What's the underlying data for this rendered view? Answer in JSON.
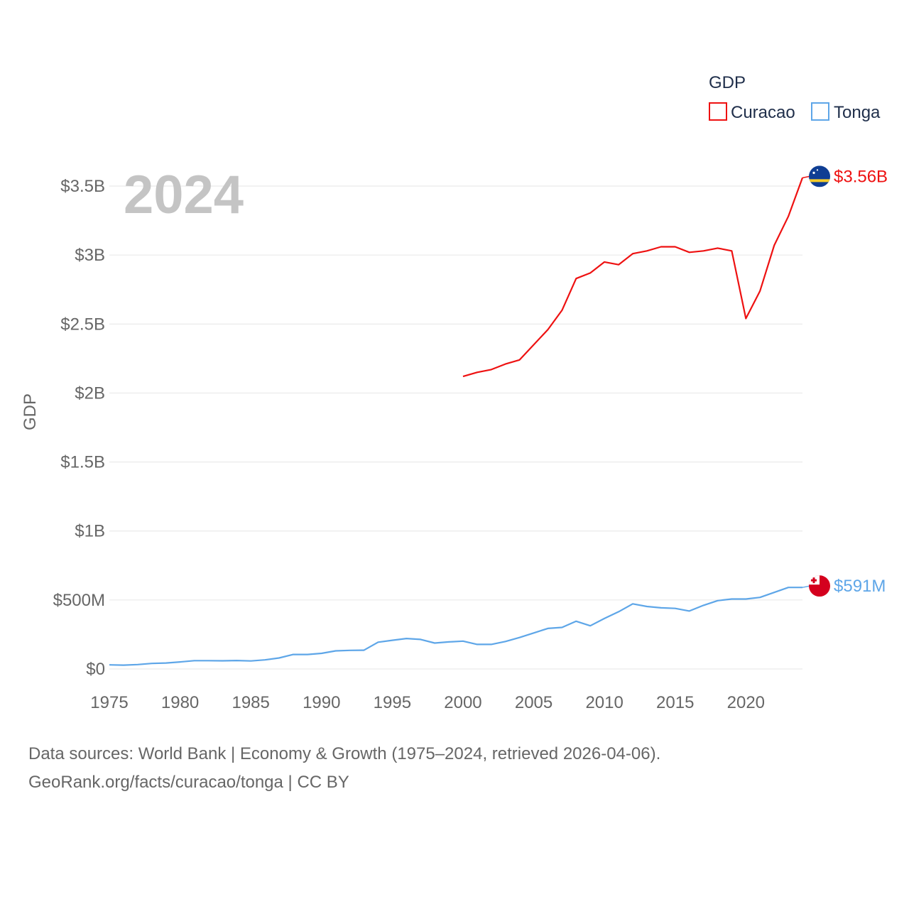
{
  "chart_data": {
    "type": "line",
    "title": "GDP",
    "year_label": "2024",
    "ylabel": "GDP",
    "xlabel": "",
    "xlim": [
      1975,
      2024
    ],
    "ylim": [
      0,
      3500000000
    ],
    "x_ticks": [
      1975,
      1980,
      1985,
      1990,
      1995,
      2000,
      2005,
      2010,
      2015,
      2020
    ],
    "y_ticks": [
      {
        "value": 0,
        "label": "$0"
      },
      {
        "value": 500000000,
        "label": "$500M"
      },
      {
        "value": 1000000000,
        "label": "$1B"
      },
      {
        "value": 1500000000,
        "label": "$1.5B"
      },
      {
        "value": 2000000000,
        "label": "$2B"
      },
      {
        "value": 2500000000,
        "label": "$2.5B"
      },
      {
        "value": 3000000000,
        "label": "$3B"
      },
      {
        "value": 3500000000,
        "label": "$3.5B"
      }
    ],
    "grid": true,
    "legend": {
      "title": "GDP",
      "position": "top-right"
    },
    "series": [
      {
        "name": "Curacao",
        "color": "#ee1111",
        "flag": "curacao-flag",
        "end_label": "$3.56B",
        "x": [
          2000,
          2001,
          2002,
          2003,
          2004,
          2005,
          2006,
          2007,
          2008,
          2009,
          2010,
          2011,
          2012,
          2013,
          2014,
          2015,
          2016,
          2017,
          2018,
          2019,
          2020,
          2021,
          2022,
          2023,
          2024
        ],
        "values": [
          2120000000,
          2150000000,
          2170000000,
          2210000000,
          2240000000,
          2350000000,
          2460000000,
          2600000000,
          2830000000,
          2870000000,
          2950000000,
          2930000000,
          3010000000,
          3030000000,
          3060000000,
          3060000000,
          3020000000,
          3030000000,
          3050000000,
          3030000000,
          2540000000,
          2740000000,
          3070000000,
          3280000000,
          3560000000
        ]
      },
      {
        "name": "Tonga",
        "color": "#5ea6e8",
        "flag": "tonga-flag",
        "end_label": "$591M",
        "x": [
          1975,
          1976,
          1977,
          1978,
          1979,
          1980,
          1981,
          1982,
          1983,
          1984,
          1985,
          1986,
          1987,
          1988,
          1989,
          1990,
          1991,
          1992,
          1993,
          1994,
          1995,
          1996,
          1997,
          1998,
          1999,
          2000,
          2001,
          2002,
          2003,
          2004,
          2005,
          2006,
          2007,
          2008,
          2009,
          2010,
          2011,
          2012,
          2013,
          2014,
          2015,
          2016,
          2017,
          2018,
          2019,
          2020,
          2021,
          2022,
          2023,
          2024
        ],
        "values": [
          30000000,
          28000000,
          32000000,
          40000000,
          43000000,
          51000000,
          60000000,
          60000000,
          59000000,
          61000000,
          58000000,
          66000000,
          80000000,
          105000000,
          105000000,
          113000000,
          131000000,
          135000000,
          136000000,
          194000000,
          208000000,
          221000000,
          214000000,
          188000000,
          196000000,
          202000000,
          178000000,
          178000000,
          199000000,
          228000000,
          261000000,
          294000000,
          301000000,
          346000000,
          313000000,
          366000000,
          415000000,
          472000000,
          453000000,
          443000000,
          439000000,
          420000000,
          461000000,
          495000000,
          507000000,
          507000000,
          519000000,
          555000000,
          591000000,
          591000000
        ]
      }
    ]
  },
  "source": {
    "line1": "Data sources: World Bank | Economy & Growth (1975–2024, retrieved 2026-04-06).",
    "line2": "GeoRank.org/facts/curacao/tonga | CC BY"
  }
}
